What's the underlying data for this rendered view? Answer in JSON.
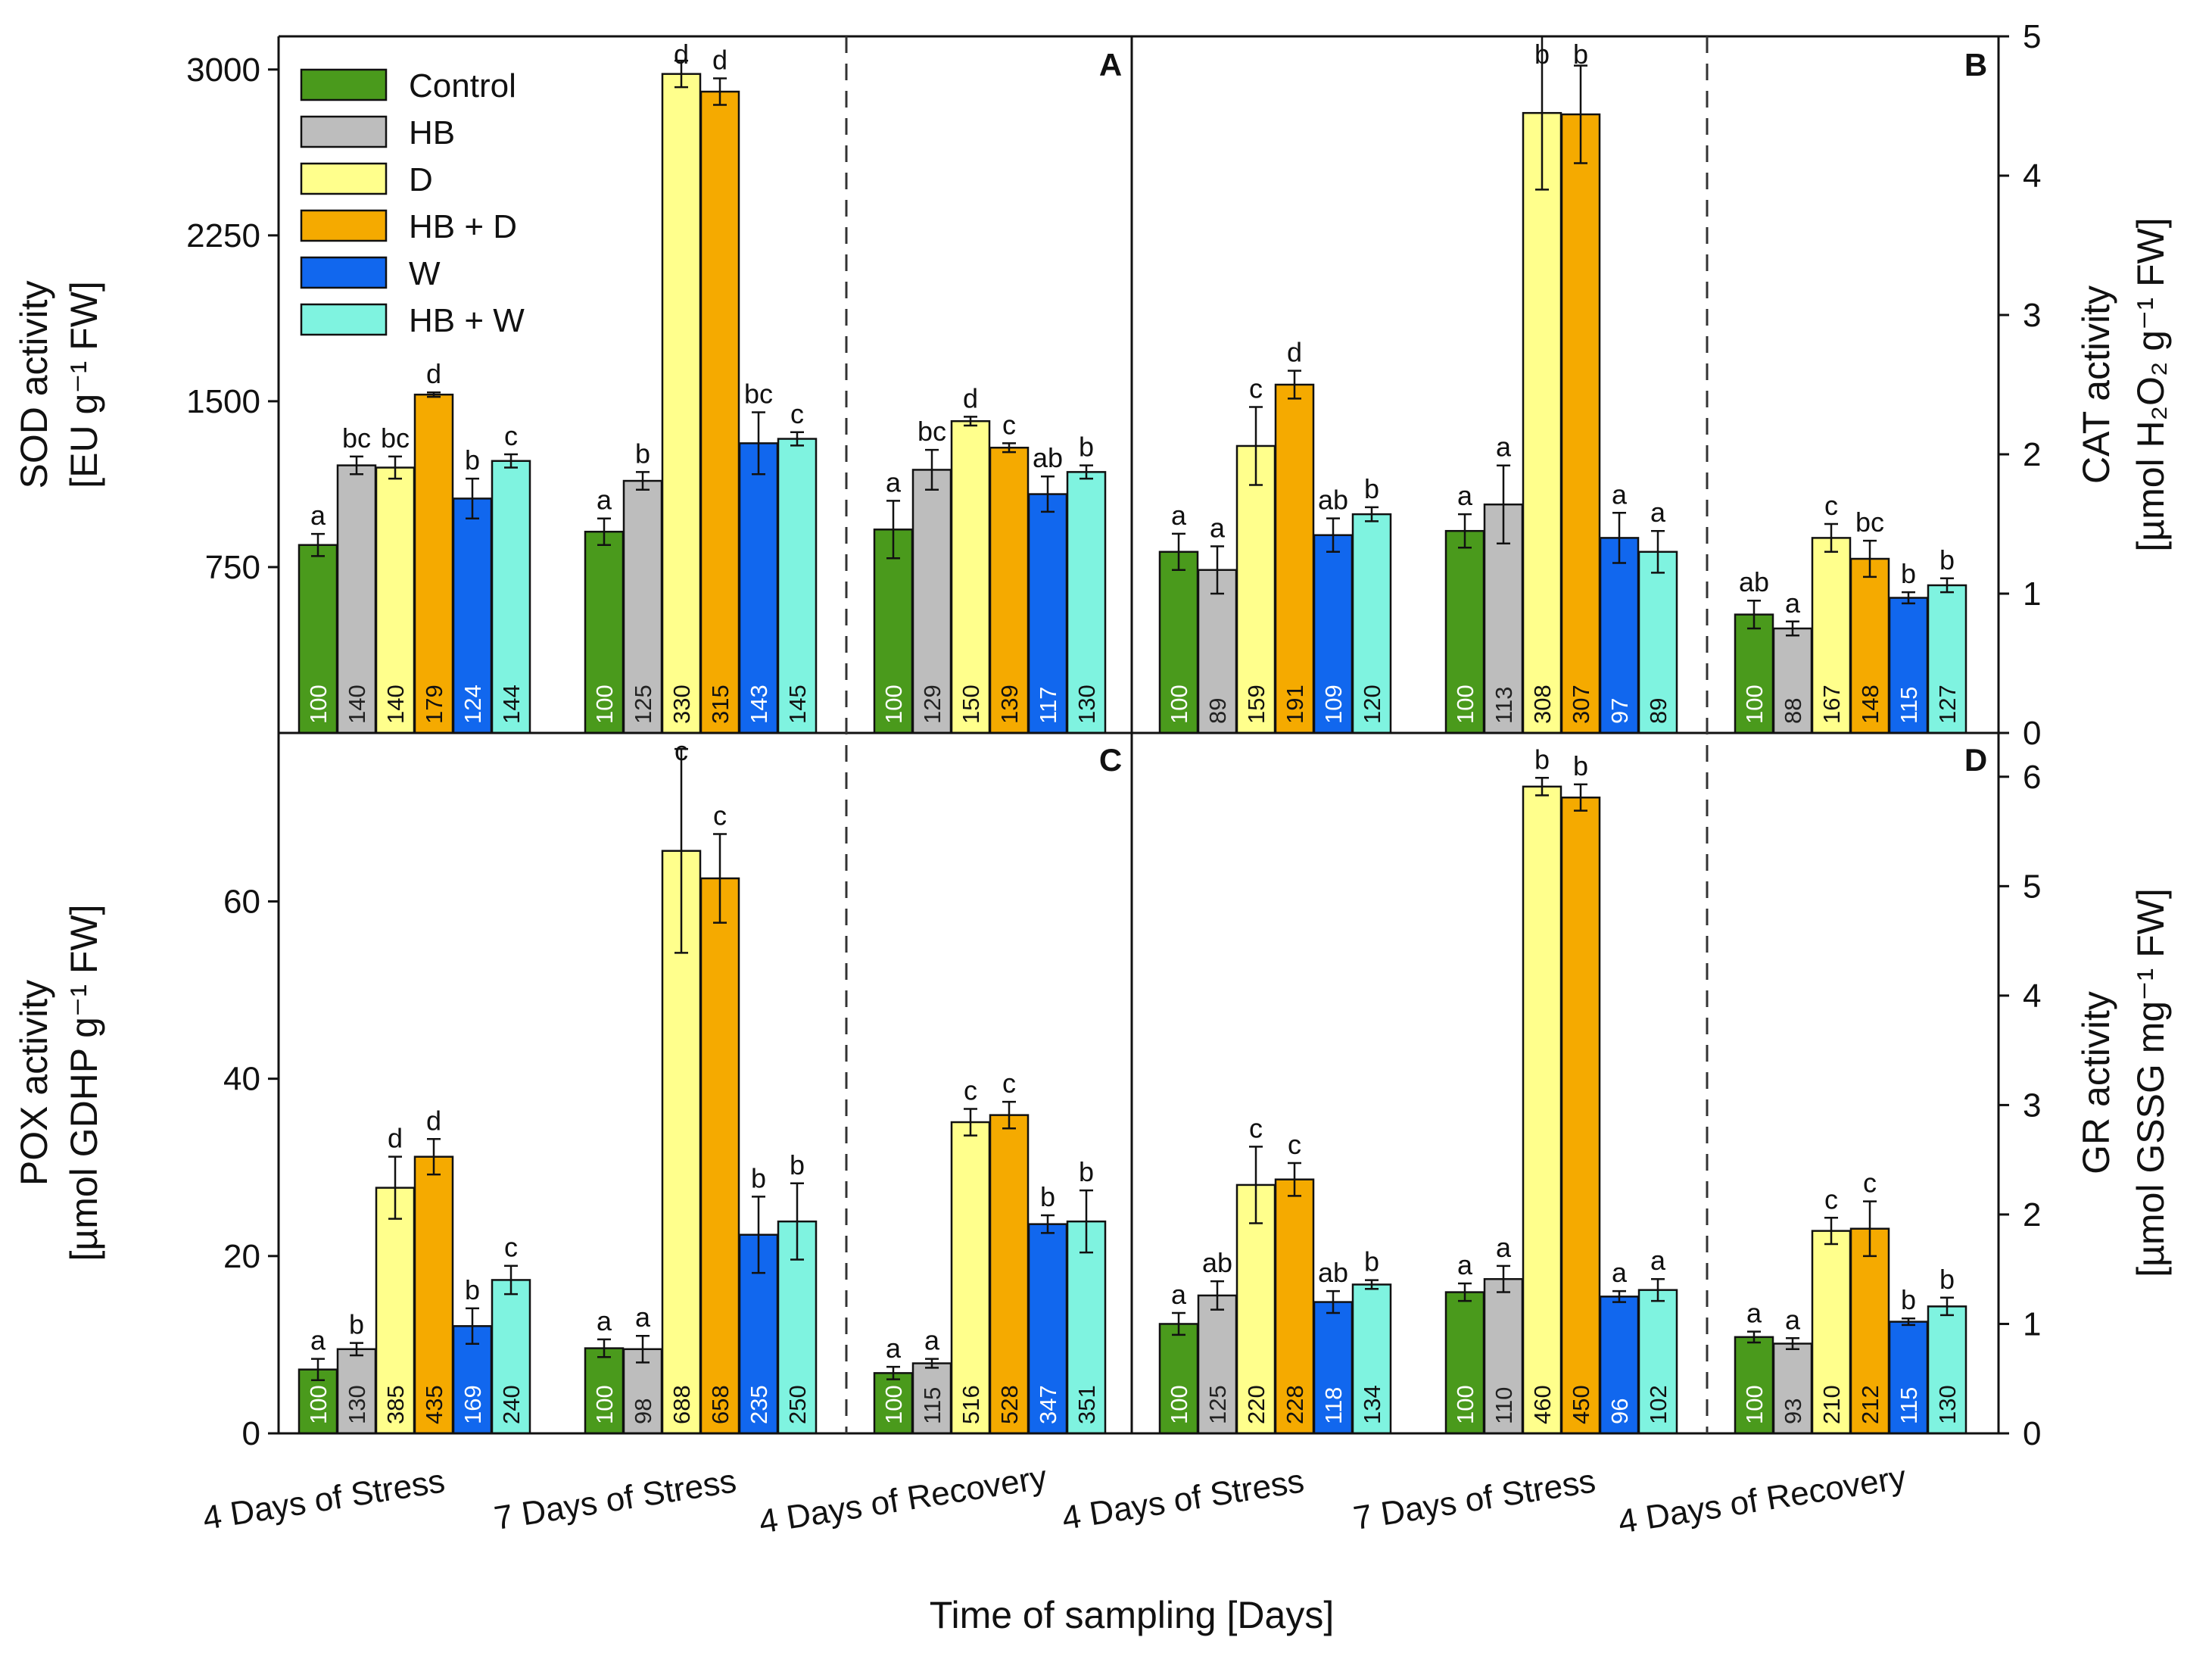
{
  "figure": {
    "xlabel": "Time of sampling [Days]",
    "categories": [
      "4 Days of Stress",
      "7 Days of Stress",
      "4 Days of Recovery"
    ],
    "legend": [
      {
        "label": "Control",
        "color": "#4a9a1c"
      },
      {
        "label": "HB",
        "color": "#bdbdbd"
      },
      {
        "label": "D",
        "color": "#ffff8c"
      },
      {
        "label": "HB + D",
        "color": "#f5aa00"
      },
      {
        "label": "W",
        "color": "#1167ee"
      },
      {
        "label": "HB + W",
        "color": "#7ff3e0"
      }
    ]
  },
  "chart_data": [
    {
      "panel": "A",
      "type": "bar",
      "ylabel": "SOD activity",
      "ylabel_unit": "[EU g⁻¹ FW]",
      "ylim": [
        0,
        3150
      ],
      "yticks": [
        750,
        1500,
        2250,
        3000
      ],
      "categories": [
        "4 Days of Stress",
        "7 Days of Stress",
        "4 Days of Recovery"
      ],
      "series": [
        {
          "name": "Control",
          "values": [
            850,
            910,
            920
          ],
          "errors": [
            50,
            60,
            130
          ],
          "letters": [
            "a",
            "a",
            "a"
          ],
          "percent": [
            "100",
            "100",
            "100"
          ]
        },
        {
          "name": "HB",
          "values": [
            1210,
            1140,
            1190
          ],
          "errors": [
            40,
            40,
            90
          ],
          "letters": [
            "bc",
            "b",
            "bc"
          ],
          "percent": [
            "140",
            "125",
            "129"
          ]
        },
        {
          "name": "D",
          "values": [
            1200,
            2980,
            1410
          ],
          "errors": [
            50,
            60,
            20
          ],
          "letters": [
            "bc",
            "d",
            "d"
          ],
          "percent": [
            "140",
            "330",
            "150"
          ]
        },
        {
          "name": "HB + D",
          "values": [
            1530,
            2900,
            1290
          ],
          "errors": [
            10,
            60,
            20
          ],
          "letters": [
            "d",
            "d",
            "c"
          ],
          "percent": [
            "179",
            "315",
            "139"
          ]
        },
        {
          "name": "W",
          "values": [
            1060,
            1310,
            1080
          ],
          "errors": [
            90,
            140,
            80
          ],
          "letters": [
            "b",
            "bc",
            "ab"
          ],
          "percent": [
            "124",
            "143",
            "117"
          ]
        },
        {
          "name": "HB + W",
          "values": [
            1230,
            1330,
            1180
          ],
          "errors": [
            30,
            30,
            30
          ],
          "letters": [
            "c",
            "c",
            "b"
          ],
          "percent": [
            "144",
            "145",
            "130"
          ]
        }
      ]
    },
    {
      "panel": "B",
      "type": "bar",
      "ylabel": "CAT activity",
      "ylabel_unit": "[µmol H₂O₂ g⁻¹ FW]",
      "ylim": [
        0,
        5
      ],
      "yticks": [
        0,
        1,
        2,
        3,
        4,
        5
      ],
      "categories": [
        "4 Days of Stress",
        "7 Days of Stress",
        "4 Days of Recovery"
      ],
      "series": [
        {
          "name": "Control",
          "values": [
            1.3,
            1.45,
            0.85
          ],
          "errors": [
            0.13,
            0.12,
            0.1
          ],
          "letters": [
            "a",
            "a",
            "ab"
          ],
          "percent": [
            "100",
            "100",
            "100"
          ]
        },
        {
          "name": "HB",
          "values": [
            1.17,
            1.64,
            0.75
          ],
          "errors": [
            0.17,
            0.28,
            0.05
          ],
          "letters": [
            "a",
            "a",
            "a"
          ],
          "percent": [
            "89",
            "113",
            "88"
          ]
        },
        {
          "name": "D",
          "values": [
            2.06,
            4.45,
            1.4
          ],
          "errors": [
            0.28,
            0.55,
            0.1
          ],
          "letters": [
            "c",
            "b",
            "c"
          ],
          "percent": [
            "159",
            "308",
            "167"
          ]
        },
        {
          "name": "HB + D",
          "values": [
            2.5,
            4.44,
            1.25
          ],
          "errors": [
            0.1,
            0.35,
            0.13
          ],
          "letters": [
            "d",
            "b",
            "bc"
          ],
          "percent": [
            "191",
            "307",
            "148"
          ]
        },
        {
          "name": "W",
          "values": [
            1.42,
            1.4,
            0.97
          ],
          "errors": [
            0.12,
            0.18,
            0.04
          ],
          "letters": [
            "ab",
            "a",
            "b"
          ],
          "percent": [
            "109",
            "97",
            "115"
          ]
        },
        {
          "name": "HB + W",
          "values": [
            1.57,
            1.3,
            1.06
          ],
          "errors": [
            0.05,
            0.15,
            0.05
          ],
          "letters": [
            "b",
            "a",
            "b"
          ],
          "percent": [
            "120",
            "89",
            "127"
          ]
        }
      ]
    },
    {
      "panel": "C",
      "type": "bar",
      "ylabel": "POX activity",
      "ylabel_unit": "[µmol GDHP g⁻¹ FW]",
      "ylim": [
        0,
        79
      ],
      "yticks": [
        0,
        20,
        40,
        60
      ],
      "categories": [
        "4 Days of Stress",
        "7 Days of Stress",
        "4 Days of Recovery"
      ],
      "series": [
        {
          "name": "Control",
          "values": [
            7.2,
            9.6,
            6.8
          ],
          "errors": [
            1.2,
            1.0,
            0.7
          ],
          "letters": [
            "a",
            "a",
            "a"
          ],
          "percent": [
            "100",
            "100",
            "100"
          ]
        },
        {
          "name": "HB",
          "values": [
            9.5,
            9.5,
            7.9
          ],
          "errors": [
            0.7,
            1.5,
            0.5
          ],
          "letters": [
            "b",
            "a",
            "a"
          ],
          "percent": [
            "130",
            "98",
            "115"
          ]
        },
        {
          "name": "D",
          "values": [
            27.7,
            65.7,
            35.1
          ],
          "errors": [
            3.5,
            11.5,
            1.5
          ],
          "letters": [
            "d",
            "c",
            "c"
          ],
          "percent": [
            "385",
            "688",
            "516"
          ]
        },
        {
          "name": "HB + D",
          "values": [
            31.2,
            62.6,
            35.9
          ],
          "errors": [
            2.0,
            5.0,
            1.5
          ],
          "letters": [
            "d",
            "c",
            "c"
          ],
          "percent": [
            "435",
            "658",
            "528"
          ]
        },
        {
          "name": "W",
          "values": [
            12.1,
            22.4,
            23.6
          ],
          "errors": [
            2.0,
            4.3,
            1.0
          ],
          "letters": [
            "b",
            "b",
            "b"
          ],
          "percent": [
            "169",
            "235",
            "347"
          ]
        },
        {
          "name": "HB + W",
          "values": [
            17.3,
            23.9,
            23.9
          ],
          "errors": [
            1.6,
            4.3,
            3.5
          ],
          "letters": [
            "c",
            "b",
            "b"
          ],
          "percent": [
            "240",
            "250",
            "351"
          ]
        }
      ]
    },
    {
      "panel": "D",
      "type": "bar",
      "ylabel": "GR activity",
      "ylabel_unit": "[µmol GSSG mg⁻¹ FW]",
      "ylim": [
        0,
        6.4
      ],
      "yticks": [
        0,
        1,
        2,
        3,
        4,
        5,
        6
      ],
      "categories": [
        "4 Days of Stress",
        "7 Days of Stress",
        "4 Days of Recovery"
      ],
      "series": [
        {
          "name": "Control",
          "values": [
            1.0,
            1.29,
            0.88
          ],
          "errors": [
            0.1,
            0.08,
            0.05
          ],
          "letters": [
            "a",
            "a",
            "a"
          ],
          "percent": [
            "100",
            "100",
            "100"
          ]
        },
        {
          "name": "HB",
          "values": [
            1.26,
            1.41,
            0.82
          ],
          "errors": [
            0.13,
            0.12,
            0.05
          ],
          "letters": [
            "ab",
            "a",
            "a"
          ],
          "percent": [
            "125",
            "110",
            "93"
          ]
        },
        {
          "name": "D",
          "values": [
            2.27,
            5.91,
            1.85
          ],
          "errors": [
            0.35,
            0.08,
            0.12
          ],
          "letters": [
            "c",
            "b",
            "c"
          ],
          "percent": [
            "220",
            "460",
            "210"
          ]
        },
        {
          "name": "HB + D",
          "values": [
            2.32,
            5.81,
            1.87
          ],
          "errors": [
            0.15,
            0.12,
            0.25
          ],
          "letters": [
            "c",
            "b",
            "c"
          ],
          "percent": [
            "228",
            "450",
            "212"
          ]
        },
        {
          "name": "W",
          "values": [
            1.2,
            1.25,
            1.02
          ],
          "errors": [
            0.1,
            0.05,
            0.03
          ],
          "letters": [
            "ab",
            "a",
            "b"
          ],
          "percent": [
            "118",
            "96",
            "115"
          ]
        },
        {
          "name": "HB + W",
          "values": [
            1.36,
            1.31,
            1.16
          ],
          "errors": [
            0.04,
            0.1,
            0.08
          ],
          "letters": [
            "b",
            "a",
            "b"
          ],
          "percent": [
            "134",
            "102",
            "130"
          ]
        }
      ]
    }
  ]
}
